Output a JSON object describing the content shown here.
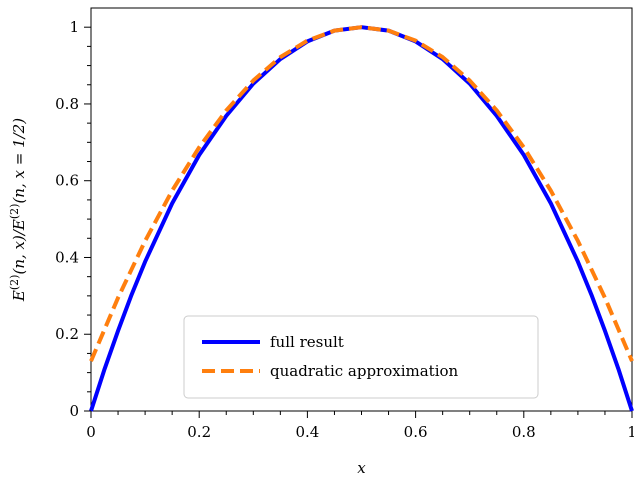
{
  "chart_data": {
    "type": "line",
    "xlabel": "x",
    "ylabel": "E(2)(n, x)/E(2)(n, x = 1/2)",
    "ylabel_parts": {
      "lhs_base": "E",
      "lhs_sup": "(2)",
      "lhs_args": "(n, x)/",
      "rhs_base": "E",
      "rhs_sup": "(2)",
      "rhs_args": "(n, x = 1/2)"
    },
    "xlim": [
      0,
      1
    ],
    "ylim": [
      0,
      1.05
    ],
    "x_ticks": [
      0,
      0.2,
      0.4,
      0.6,
      0.8,
      1
    ],
    "x_tick_labels": [
      "0",
      "0.2",
      "0.4",
      "0.6",
      "0.8",
      "1"
    ],
    "y_ticks": [
      0,
      0.2,
      0.4,
      0.6,
      0.8,
      1
    ],
    "y_tick_labels": [
      "0",
      "0.2",
      "0.4",
      "0.6",
      "0.8",
      "1"
    ],
    "grid": false,
    "legend_position": "bottom-center",
    "series": [
      {
        "name": "full result",
        "style": "solid",
        "color": "#0000ff",
        "x": [
          0,
          0.025,
          0.05,
          0.075,
          0.1,
          0.15,
          0.2,
          0.25,
          0.3,
          0.35,
          0.4,
          0.45,
          0.5,
          0.55,
          0.6,
          0.65,
          0.7,
          0.75,
          0.8,
          0.85,
          0.9,
          0.925,
          0.95,
          0.975,
          1
        ],
        "y": [
          0,
          0.109,
          0.209,
          0.303,
          0.389,
          0.541,
          0.667,
          0.769,
          0.853,
          0.917,
          0.963,
          0.991,
          1,
          0.991,
          0.963,
          0.917,
          0.853,
          0.769,
          0.667,
          0.541,
          0.389,
          0.303,
          0.209,
          0.109,
          0
        ]
      },
      {
        "name": "quadratic approximation",
        "style": "dashed",
        "color": "#ff7f0e",
        "x": [
          0,
          0.05,
          0.1,
          0.15,
          0.2,
          0.25,
          0.3,
          0.35,
          0.4,
          0.45,
          0.5,
          0.55,
          0.6,
          0.65,
          0.7,
          0.75,
          0.8,
          0.85,
          0.9,
          0.95,
          1
        ],
        "y": [
          0.13,
          0.295,
          0.443,
          0.574,
          0.687,
          0.783,
          0.861,
          0.922,
          0.965,
          0.991,
          1,
          0.991,
          0.965,
          0.922,
          0.861,
          0.783,
          0.687,
          0.574,
          0.443,
          0.295,
          0.13
        ]
      }
    ]
  }
}
